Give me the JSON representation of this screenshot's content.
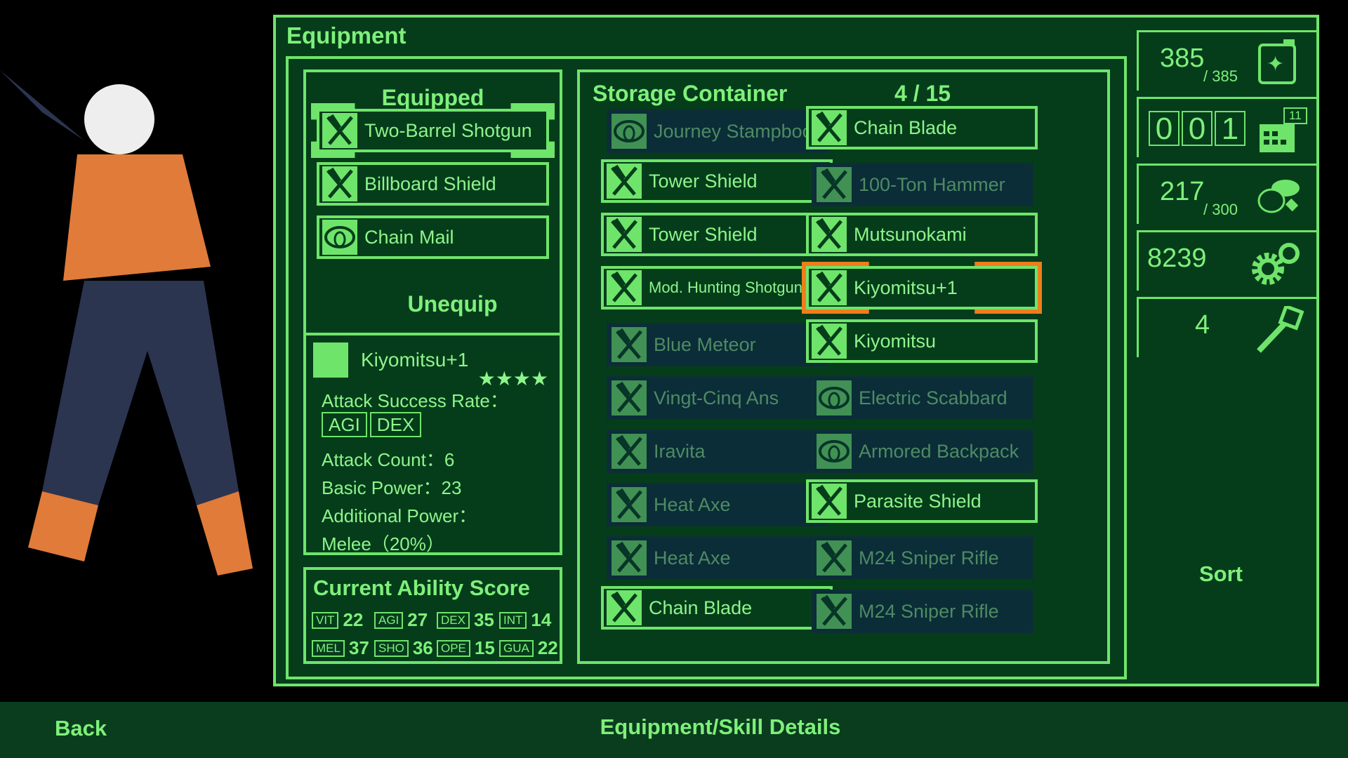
{
  "title": "Equipment",
  "equipped": {
    "header": "Equipped",
    "items": [
      {
        "name": "Two-Barrel Shotgun",
        "icon": "weapon-icon"
      },
      {
        "name": "Billboard Shield",
        "icon": "weapon-icon"
      },
      {
        "name": "Chain Mail",
        "icon": "armor-icon"
      }
    ],
    "unequip_label": "Unequip"
  },
  "detail": {
    "name": "Kiyomitsu+1",
    "icon": "weapon-icon",
    "stars": 4,
    "stars_text": "★★★★",
    "attack_success_rate_label": "Attack Success Rate：",
    "rate_tags": [
      "AGI",
      "DEX"
    ],
    "attack_count": "Attack Count：6",
    "basic_power": "Basic Power：23",
    "additional_power_label": "Additional Power：",
    "additional_power": "Melee（20%）"
  },
  "ability": {
    "header": "Current Ability Score",
    "scores": [
      {
        "tag": "VIT",
        "value": "22"
      },
      {
        "tag": "AGI",
        "value": "27"
      },
      {
        "tag": "DEX",
        "value": "35"
      },
      {
        "tag": "INT",
        "value": "14"
      },
      {
        "tag": "MEL",
        "value": "37"
      },
      {
        "tag": "SHO",
        "value": "36"
      },
      {
        "tag": "OPE",
        "value": "15"
      },
      {
        "tag": "GUA",
        "value": "22"
      }
    ]
  },
  "storage": {
    "header": "Storage Container",
    "count": "4 / 15",
    "left": [
      {
        "name": "Journey Stampbook",
        "icon": "armor-icon",
        "disabled": true
      },
      {
        "name": "Tower Shield",
        "icon": "weapon-icon"
      },
      {
        "name": "Tower Shield",
        "icon": "weapon-icon"
      },
      {
        "name": "Mod. Hunting Shotgun",
        "icon": "weapon-icon",
        "small": true
      },
      {
        "name": "Blue Meteor",
        "icon": "weapon-icon",
        "disabled": true
      },
      {
        "name": "Vingt-Cinq Ans",
        "icon": "weapon-icon",
        "disabled": true
      },
      {
        "name": "Iravita",
        "icon": "weapon-icon",
        "disabled": true
      },
      {
        "name": "Heat Axe",
        "icon": "weapon-icon",
        "disabled": true
      },
      {
        "name": "Heat Axe",
        "icon": "weapon-icon",
        "disabled": true
      },
      {
        "name": "Chain Blade",
        "icon": "weapon-icon"
      }
    ],
    "right": [
      {
        "name": "Chain Blade",
        "icon": "weapon-icon"
      },
      {
        "name": "100-Ton Hammer",
        "icon": "weapon-icon",
        "disabled": true
      },
      {
        "name": "Mutsunokami",
        "icon": "weapon-icon"
      },
      {
        "name": "Kiyomitsu+1",
        "icon": "weapon-icon",
        "selected": true
      },
      {
        "name": "Kiyomitsu",
        "icon": "weapon-icon"
      },
      {
        "name": "Electric Scabbard",
        "icon": "armor-icon",
        "disabled": true
      },
      {
        "name": "Armored Backpack",
        "icon": "armor-icon",
        "disabled": true
      },
      {
        "name": "Parasite Shield",
        "icon": "weapon-icon"
      },
      {
        "name": "M24 Sniper Rifle",
        "icon": "weapon-icon",
        "disabled": true
      },
      {
        "name": "M24 Sniper Rifle",
        "icon": "weapon-icon",
        "disabled": true
      }
    ]
  },
  "stats": {
    "energy": "385",
    "energy_max": "/ 385",
    "day_digits": [
      "0",
      "0",
      "1"
    ],
    "calendar_badge": "11",
    "food": "217",
    "food_max": "/ 300",
    "parts": "8239",
    "keys": "4"
  },
  "sort_label": "Sort",
  "footer": {
    "back": "Back",
    "details": "Equipment/Skill Details"
  },
  "colors": {
    "accent": "#6fe46b",
    "panel": "#053d1b",
    "selected": "#f07d1c",
    "disabled": "#0a2d38"
  }
}
